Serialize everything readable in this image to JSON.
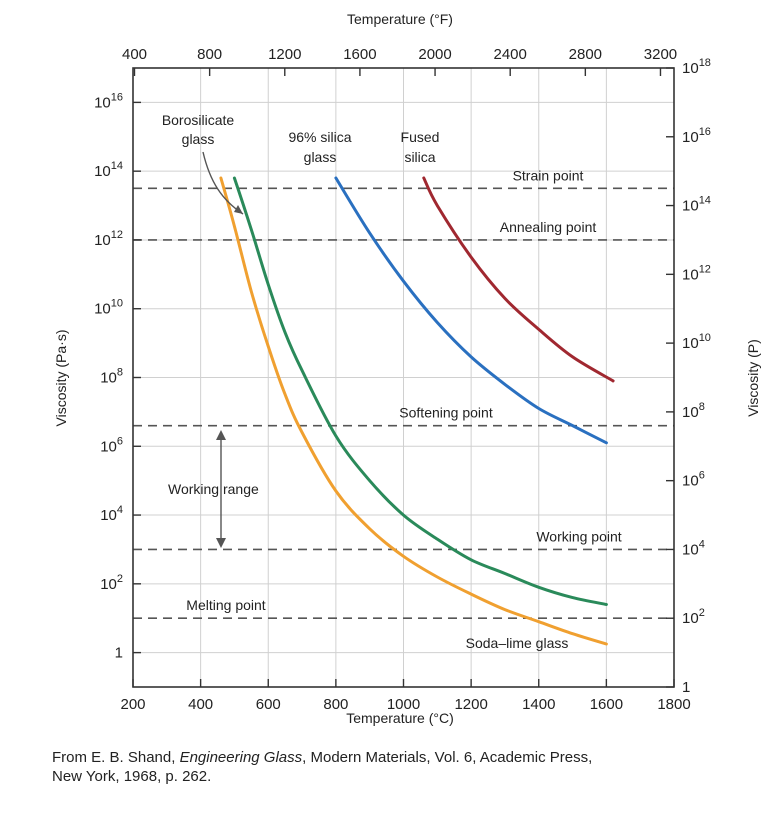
{
  "chart_data": {
    "type": "line",
    "title": "",
    "xlabel": "Temperature (°C)",
    "x2label": "Temperature (°F)",
    "ylabel": "Viscosity (Pa·s)",
    "y2label": "Viscosity (P)",
    "yscale": "log",
    "xlim": [
      200,
      1800
    ],
    "ylim_log10": [
      -1,
      17
    ],
    "x_ticks": [
      200,
      400,
      600,
      800,
      1000,
      1200,
      1400,
      1600,
      1800
    ],
    "x2_ticks": [
      400,
      800,
      1200,
      1600,
      2000,
      2400,
      2800,
      3200
    ],
    "y_ticks": [
      {
        "exp": 0,
        "label": "1",
        "sup": ""
      },
      {
        "exp": 2,
        "label": "10",
        "sup": "2"
      },
      {
        "exp": 4,
        "label": "10",
        "sup": "4"
      },
      {
        "exp": 6,
        "label": "10",
        "sup": "6"
      },
      {
        "exp": 8,
        "label": "10",
        "sup": "8"
      },
      {
        "exp": 10,
        "label": "10",
        "sup": "10"
      },
      {
        "exp": 12,
        "label": "10",
        "sup": "12"
      },
      {
        "exp": 14,
        "label": "10",
        "sup": "14"
      },
      {
        "exp": 16,
        "label": "10",
        "sup": "16"
      }
    ],
    "y2_ticks": [
      {
        "exp_pa": -1,
        "label": "1",
        "sup": ""
      },
      {
        "exp_pa": 1,
        "label": "10",
        "sup": "2"
      },
      {
        "exp_pa": 3,
        "label": "10",
        "sup": "4"
      },
      {
        "exp_pa": 5,
        "label": "10",
        "sup": "6"
      },
      {
        "exp_pa": 7,
        "label": "10",
        "sup": "8"
      },
      {
        "exp_pa": 9,
        "label": "10",
        "sup": "10"
      },
      {
        "exp_pa": 11,
        "label": "10",
        "sup": "12"
      },
      {
        "exp_pa": 13,
        "label": "10",
        "sup": "14"
      },
      {
        "exp_pa": 15,
        "label": "10",
        "sup": "16"
      },
      {
        "exp_pa": 17,
        "label": "10",
        "sup": "18"
      }
    ],
    "grid": true,
    "reference_lines": [
      {
        "name": "Strain point",
        "log10_viscosity": 13.5
      },
      {
        "name": "Annealing point",
        "log10_viscosity": 12
      },
      {
        "name": "Softening point",
        "log10_viscosity": 6.6
      },
      {
        "name": "Working point",
        "log10_viscosity": 3
      },
      {
        "name": "Melting point",
        "log10_viscosity": 1
      }
    ],
    "series": [
      {
        "name": "Soda–lime glass",
        "color": "#f0a030",
        "x": [
          460,
          500,
          550,
          600,
          650,
          700,
          800,
          900,
          1000,
          1100,
          1200,
          1300,
          1400,
          1500,
          1600
        ],
        "log10_y": [
          13.8,
          12.4,
          10.5,
          8.9,
          7.5,
          6.4,
          4.7,
          3.6,
          2.8,
          2.2,
          1.7,
          1.25,
          0.9,
          0.55,
          0.25
        ]
      },
      {
        "name": "Borosilicate glass",
        "color": "#2a8a5a",
        "x": [
          500,
          550,
          600,
          650,
          700,
          800,
          900,
          1000,
          1100,
          1200,
          1300,
          1400,
          1500,
          1600
        ],
        "log10_y": [
          13.8,
          12.3,
          10.7,
          9.3,
          8.2,
          6.3,
          5.0,
          4.0,
          3.3,
          2.7,
          2.3,
          1.9,
          1.6,
          1.4
        ]
      },
      {
        "name": "96% silica glass",
        "color": "#2a70c0",
        "x": [
          800,
          900,
          1000,
          1100,
          1200,
          1300,
          1400,
          1500,
          1600
        ],
        "log10_y": [
          13.8,
          12.2,
          10.8,
          9.6,
          8.6,
          7.8,
          7.1,
          6.6,
          6.1
        ]
      },
      {
        "name": "Fused silica",
        "color": "#a02830",
        "x": [
          1060,
          1100,
          1200,
          1300,
          1400,
          1500,
          1620
        ],
        "log10_y": [
          13.8,
          13.0,
          11.5,
          10.3,
          9.4,
          8.6,
          7.9
        ]
      }
    ],
    "annotations": {
      "borosilicate_l1": "Borosilicate",
      "borosilicate_l2": "glass",
      "silica96_l1": "96% silica",
      "silica96_l2": "glass",
      "fused_l1": "Fused",
      "fused_l2": "silica",
      "working_range": "Working range",
      "soda_lime": "Soda–lime glass"
    }
  },
  "caption": {
    "prefix": "From E. B. Shand, ",
    "book": "Engineering Glass",
    "rest": ", Modern Materials, Vol. 6, Academic Press,",
    "line2": "New York, 1968, p. 262."
  }
}
